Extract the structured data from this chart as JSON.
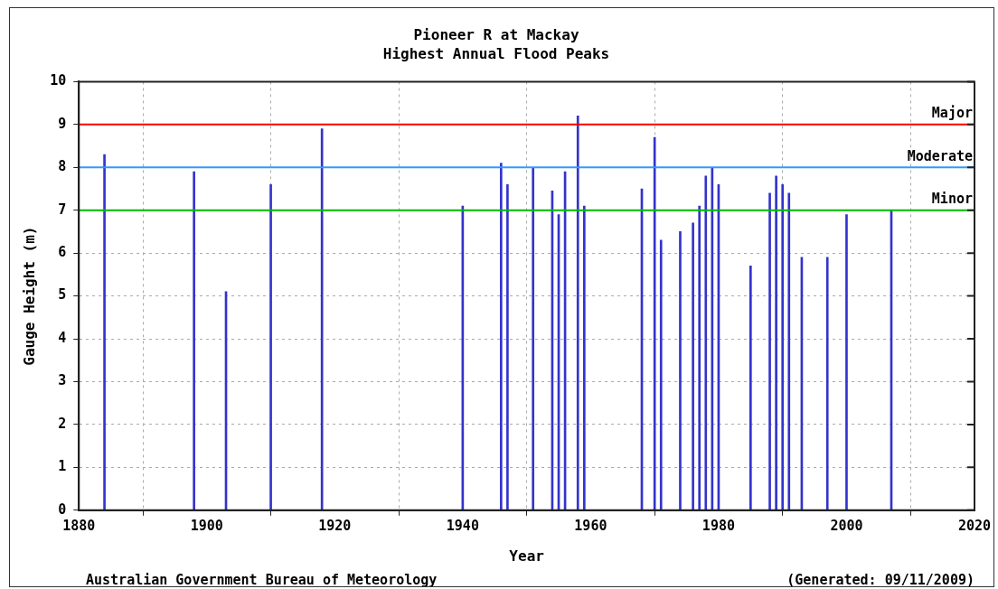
{
  "chart_data": {
    "type": "bar",
    "title": "Pioneer R at Mackay",
    "subtitle": "Highest Annual Flood Peaks",
    "xlabel": "Year",
    "ylabel": "Gauge Height (m)",
    "x": [
      1884,
      1898,
      1903,
      1910,
      1918,
      1940,
      1946,
      1947,
      1951,
      1954,
      1955,
      1956,
      1958,
      1959,
      1968,
      1970,
      1971,
      1974,
      1976,
      1977,
      1978,
      1979,
      1980,
      1985,
      1988,
      1989,
      1990,
      1991,
      1993,
      1997,
      2000,
      2007
    ],
    "values": [
      8.3,
      7.9,
      5.1,
      7.6,
      8.9,
      7.1,
      8.1,
      7.6,
      8.0,
      7.45,
      6.9,
      7.9,
      9.2,
      7.1,
      7.5,
      8.7,
      6.3,
      6.5,
      6.7,
      7.1,
      7.8,
      8.0,
      7.6,
      5.7,
      7.4,
      7.8,
      7.6,
      7.4,
      5.9,
      5.9,
      6.9,
      7.0
    ],
    "color": "#3333cc",
    "xlim": [
      1880,
      2020
    ],
    "xticks": [
      1880,
      1900,
      1920,
      1940,
      1960,
      1980,
      2000,
      2020
    ],
    "ylim": [
      0,
      10
    ],
    "yticks": [
      0,
      1,
      2,
      3,
      4,
      5,
      6,
      7,
      8,
      9,
      10
    ],
    "ref_lines": [
      {
        "axis": "y",
        "value": 9,
        "label": "Major",
        "color": "#ff0000"
      },
      {
        "axis": "y",
        "value": 8,
        "label": "Moderate",
        "color": "#3399ff"
      },
      {
        "axis": "y",
        "value": 7,
        "label": "Minor",
        "color": "#00bb00"
      }
    ],
    "grid": true,
    "legend": false,
    "annotations": [
      "Australian Government Bureau of Meteorology",
      "(Generated: 09/11/2009)"
    ]
  }
}
